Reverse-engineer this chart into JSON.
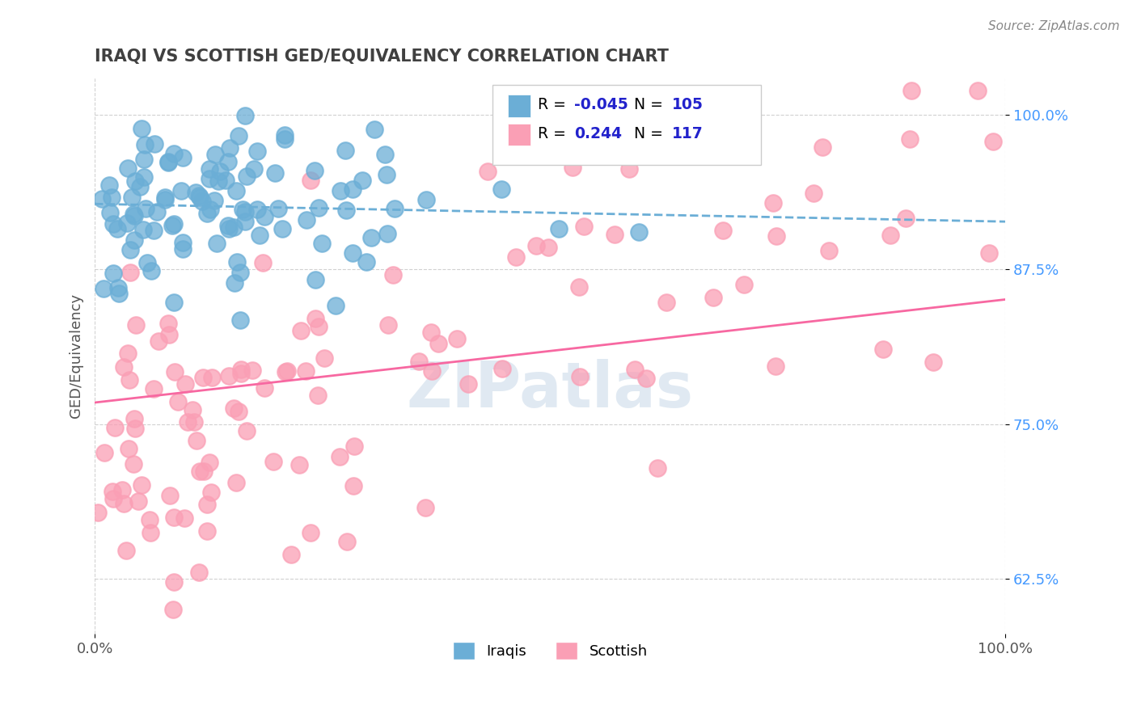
{
  "title": "IRAQI VS SCOTTISH GED/EQUIVALENCY CORRELATION CHART",
  "source_text": "Source: ZipAtlas.com",
  "ylabel": "GED/Equivalency",
  "xlim": [
    0.0,
    1.0
  ],
  "ylim": [
    0.58,
    1.03
  ],
  "xtick_labels": [
    "0.0%",
    "100.0%"
  ],
  "ytick_labels": [
    "62.5%",
    "75.0%",
    "87.5%",
    "100.0%"
  ],
  "ytick_values": [
    0.625,
    0.75,
    0.875,
    1.0
  ],
  "iraqis_color": "#6baed6",
  "scottish_color": "#fa9fb5",
  "iraqis_R": -0.045,
  "iraqis_N": 105,
  "scottish_R": 0.244,
  "scottish_N": 117,
  "legend_label_iraqis": "Iraqis",
  "legend_label_scottish": "Scottish",
  "watermark": "ZIPatlas",
  "background_color": "#ffffff",
  "grid_color": "#cccccc",
  "title_color": "#404040",
  "trend_iraqis_color": "#6baed6",
  "trend_scottish_color": "#f768a1",
  "legend_R_color": "#2222cc",
  "ytick_color": "#4499ff",
  "seed": 42
}
